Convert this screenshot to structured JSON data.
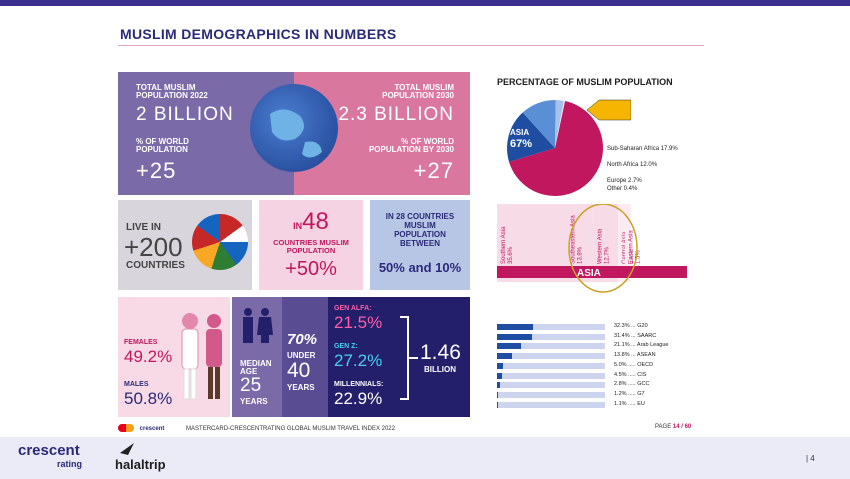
{
  "title": "MUSLIM DEMOGRAPHICS IN NUMBERS",
  "pop2022": {
    "label1": "TOTAL MUSLIM",
    "label2": "POPULATION 2022",
    "value": "2 BILLION",
    "pct1": "% OF WORLD",
    "pct2": "POPULATION",
    "pct_value": "+25"
  },
  "pop2030": {
    "label1": "TOTAL MUSLIM",
    "label2": "POPULATION 2030",
    "value": "2.3 BILLION",
    "pct1": "% OF WORLD",
    "pct2": "POPULATION BY 2030",
    "pct_value": "+27"
  },
  "live_in": {
    "l1": "LIVE IN",
    "value": "+200",
    "l2": "COUNTRIES"
  },
  "in48": {
    "pre": "IN",
    "num": "48",
    "l1": "COUNTRIES MUSLIM",
    "l2": "POPULATION",
    "value": "+50%"
  },
  "in28": {
    "l1": "IN 28 COUNTRIES",
    "l2": "MUSLIM",
    "l3": "POPULATION",
    "l4": "BETWEEN",
    "value": "50% and 10%"
  },
  "gender": {
    "females_label": "FEMALES",
    "females": "49.2%",
    "males_label": "MALES",
    "males": "50.8%"
  },
  "median": {
    "l1": "MEDIAN",
    "l2": "AGE",
    "value": "25",
    "l3": "YEARS"
  },
  "under40": {
    "pct": "70%",
    "l1": "UNDER",
    "value": "40",
    "l2": "YEARS"
  },
  "generations": {
    "alfa_label": "GEN ALFA:",
    "alfa": "21.5%",
    "z_label": "GEN Z:",
    "z": "27.2%",
    "mill_label": "MILLENNIALS:",
    "mill": "22.9%",
    "total": "1.46",
    "total_unit": "BILLION"
  },
  "chart_title": "PERCENTAGE OF MUSLIM POPULATION",
  "chart_data": [
    {
      "type": "pie",
      "categories": [
        "ASIA",
        "Sub-Saharan Africa",
        "North Africa",
        "Europe",
        "Other"
      ],
      "values": [
        67,
        17.9,
        12.0,
        2.7,
        0.4
      ],
      "labels": [
        "ASIA 67%",
        "Sub-Saharan Africa 17.9%",
        "North Africa 12.0%",
        "Europe 2.7%",
        "Other 0.4%"
      ]
    },
    {
      "type": "bar",
      "categories": [
        "Southern Asia",
        "Southeastern Asia",
        "Western Asia",
        "Central Asia",
        "Eastern Asia"
      ],
      "values": [
        35.6,
        13.8,
        12.7,
        3.4,
        1.5
      ],
      "axis_label": "ASIA"
    },
    {
      "type": "bar",
      "categories": [
        "G20",
        "SAARC",
        "Arab League",
        "ASEAN",
        "OECD",
        "CIS",
        "GCC",
        "G7",
        "EU"
      ],
      "values": [
        32.3,
        31.4,
        21.1,
        13.8,
        5.0,
        4.5,
        2.8,
        1.2,
        1.1
      ],
      "labels": [
        "32.3% ... G20",
        "31.4% ... SAARC",
        "21.1% ... Arab League",
        "13.8% ... ASEAN",
        "5.0% ..... OECD",
        "4.5% ..... CIS",
        "2.8% ..... GCC",
        "1.2% ..... G7",
        "1.1% ..... EU"
      ]
    }
  ],
  "asia_cols": [
    {
      "name": "Southern Asia",
      "pct": "35.6%"
    },
    {
      "name": "Southeastern Asia",
      "pct": "13.8%"
    },
    {
      "name": "Western Asia",
      "pct": "12.7%"
    },
    {
      "name": "Central Asia",
      "pct": "3.4%"
    },
    {
      "name": "Eastern Asia",
      "pct": "1.5%"
    }
  ],
  "asia_label": "ASIA",
  "source": "MASTERCARD-CRESCENTRATING GLOBAL MUSLIM TRAVEL INDEX 2022",
  "page_label": "PAGE",
  "page_num": "14 / 60",
  "footer": {
    "brand1": "crescent",
    "brand1b": "rating",
    "brand2": "halaltrip",
    "slide_num": "| 4"
  },
  "colors": {
    "accent": "#2b2a7a",
    "pink": "#d9779f",
    "purple": "#7a6aa8",
    "navy": "#241f6b",
    "magenta": "#c0175e"
  }
}
